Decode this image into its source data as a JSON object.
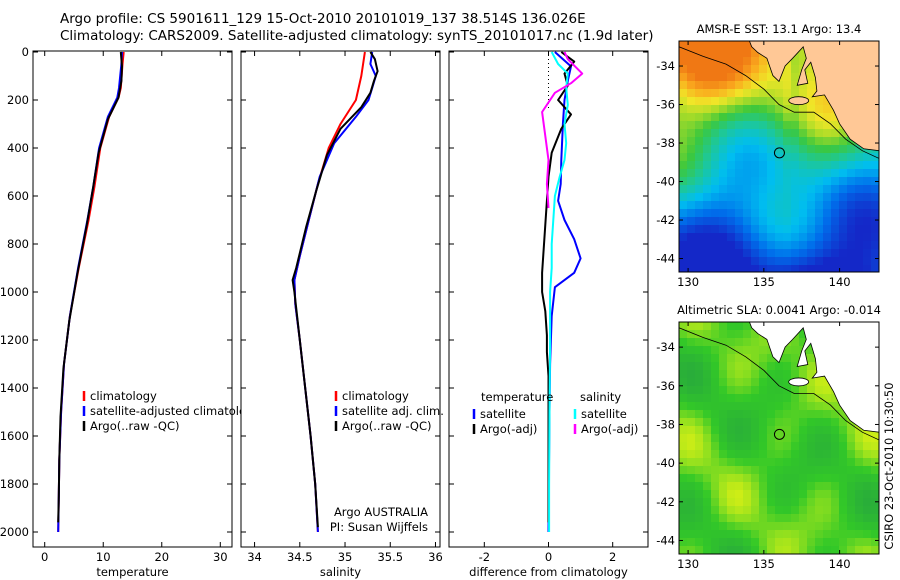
{
  "header": {
    "line1": "Argo profile: CS 5901611_129 15-Oct-2010 20101019_137 38.514S 136.026E",
    "line2": "Climatology: CARS2009. Satellite-adjusted climatology: synTS_20101017.nc (1.9d later)"
  },
  "side_label": "CSIRO 23-Oct-2010 10:30:50",
  "colors": {
    "climatology": "#ff0000",
    "satellite": "#0000ff",
    "argo": "#000000",
    "salinity_satellite": "#00ffff",
    "salinity_argo": "#ff00ff",
    "land": "#ffc896"
  },
  "chart_data": [
    {
      "type": "line",
      "xlabel": "temperature",
      "ylabel": "",
      "xlim": [
        -2,
        32
      ],
      "ylim": [
        2050,
        0
      ],
      "xticks": [
        0,
        10,
        20,
        30
      ],
      "yticks": [
        0,
        200,
        400,
        600,
        800,
        1000,
        1200,
        1400,
        1600,
        1800,
        2000
      ],
      "legend": [
        "climatology",
        "satellite-adjusted climatology",
        "Argo(..raw -QC)"
      ],
      "series": [
        {
          "name": "climatology",
          "color": "climatology",
          "points": [
            [
              13.5,
              0
            ],
            [
              13.3,
              50
            ],
            [
              13.0,
              150
            ],
            [
              12.6,
              190
            ],
            [
              11.0,
              270
            ],
            [
              9.5,
              400
            ],
            [
              8.5,
              560
            ],
            [
              7.5,
              700
            ],
            [
              5.8,
              900
            ],
            [
              4.3,
              1100
            ],
            [
              3.3,
              1300
            ],
            [
              2.8,
              1500
            ],
            [
              2.5,
              1700
            ],
            [
              2.4,
              1850
            ],
            [
              2.3,
              2000
            ]
          ]
        },
        {
          "name": "satellite-adjusted climatology",
          "color": "satellite",
          "points": [
            [
              13.2,
              0
            ],
            [
              13.1,
              50
            ],
            [
              12.7,
              150
            ],
            [
              12.4,
              190
            ],
            [
              10.8,
              270
            ],
            [
              9.3,
              400
            ],
            [
              8.3,
              560
            ],
            [
              7.3,
              700
            ],
            [
              5.7,
              900
            ],
            [
              4.3,
              1100
            ],
            [
              3.3,
              1300
            ],
            [
              2.8,
              1500
            ],
            [
              2.5,
              1700
            ],
            [
              2.4,
              1850
            ],
            [
              2.3,
              2000
            ]
          ]
        },
        {
          "name": "Argo(..raw -QC)",
          "color": "argo",
          "points": [
            [
              13.0,
              0
            ],
            [
              13.2,
              60
            ],
            [
              13.1,
              120
            ],
            [
              12.6,
              190
            ],
            [
              10.8,
              280
            ],
            [
              9.2,
              420
            ],
            [
              8.3,
              560
            ],
            [
              7.2,
              720
            ],
            [
              5.6,
              920
            ],
            [
              4.2,
              1120
            ],
            [
              3.2,
              1320
            ],
            [
              2.7,
              1520
            ],
            [
              2.5,
              1700
            ],
            [
              2.4,
              1850
            ],
            [
              2.3,
              1960
            ]
          ]
        }
      ]
    },
    {
      "type": "line",
      "xlabel": "salinity",
      "xlim": [
        33.85,
        36.05
      ],
      "ylim": [
        2050,
        0
      ],
      "xticks": [
        34,
        34.5,
        35,
        35.5,
        36
      ],
      "legend": [
        "climatology",
        "satellite adj. clim.",
        "Argo(..raw -QC)"
      ],
      "annotation": [
        "Argo AUSTRALIA",
        "PI: Susan Wijffels"
      ],
      "series": [
        {
          "name": "climatology",
          "color": "climatology",
          "points": [
            [
              35.22,
              0
            ],
            [
              35.18,
              100
            ],
            [
              35.12,
              200
            ],
            [
              34.95,
              300
            ],
            [
              34.82,
              400
            ],
            [
              34.7,
              550
            ],
            [
              34.6,
              700
            ],
            [
              34.5,
              850
            ],
            [
              34.44,
              950
            ],
            [
              34.45,
              1050
            ],
            [
              34.5,
              1200
            ],
            [
              34.56,
              1400
            ],
            [
              34.62,
              1600
            ],
            [
              34.67,
              1800
            ],
            [
              34.7,
              2000
            ]
          ]
        },
        {
          "name": "satellite adj. clim.",
          "color": "satellite",
          "points": [
            [
              35.3,
              0
            ],
            [
              35.28,
              50
            ],
            [
              35.34,
              100
            ],
            [
              35.3,
              150
            ],
            [
              35.26,
              200
            ],
            [
              35.12,
              270
            ],
            [
              34.88,
              380
            ],
            [
              34.72,
              520
            ],
            [
              34.6,
              700
            ],
            [
              34.5,
              850
            ],
            [
              34.44,
              950
            ],
            [
              34.45,
              1050
            ],
            [
              34.5,
              1200
            ],
            [
              34.56,
              1400
            ],
            [
              34.62,
              1600
            ],
            [
              34.67,
              1800
            ],
            [
              34.7,
              2000
            ]
          ]
        },
        {
          "name": "Argo(..raw -QC)",
          "color": "argo",
          "points": [
            [
              35.28,
              0
            ],
            [
              35.33,
              30
            ],
            [
              35.36,
              80
            ],
            [
              35.32,
              120
            ],
            [
              35.28,
              170
            ],
            [
              35.18,
              230
            ],
            [
              34.95,
              320
            ],
            [
              34.8,
              430
            ],
            [
              34.68,
              580
            ],
            [
              34.57,
              730
            ],
            [
              34.46,
              900
            ],
            [
              34.42,
              950
            ],
            [
              34.44,
              1000
            ],
            [
              34.5,
              1200
            ],
            [
              34.56,
              1400
            ],
            [
              34.62,
              1600
            ],
            [
              34.67,
              1800
            ],
            [
              34.7,
              1980
            ]
          ]
        }
      ]
    },
    {
      "type": "line",
      "xlabel": "difference from climatology",
      "xlim": [
        -3.1,
        3.1
      ],
      "ylim": [
        2050,
        0
      ],
      "xticks": [
        -2,
        0,
        2
      ],
      "legend_left_title": "temperature",
      "legend_right_title": "salinity",
      "legend_left": [
        "satellite",
        "Argo(-adj)"
      ],
      "legend_right": [
        "satellite",
        "Argo(-adj)"
      ],
      "series": [
        {
          "name": "satellite",
          "group": "temperature",
          "color": "satellite",
          "points": [
            [
              0.2,
              0
            ],
            [
              0.7,
              60
            ],
            [
              0.6,
              120
            ],
            [
              0.5,
              200
            ],
            [
              0.45,
              300
            ],
            [
              0.4,
              450
            ],
            [
              0.38,
              550
            ],
            [
              0.3,
              620
            ],
            [
              0.5,
              700
            ],
            [
              0.8,
              780
            ],
            [
              1.0,
              860
            ],
            [
              0.8,
              920
            ],
            [
              0.2,
              980
            ],
            [
              0.1,
              1100
            ],
            [
              0.05,
              1300
            ],
            [
              0.03,
              1500
            ],
            [
              0.01,
              1800
            ],
            [
              0.0,
              2000
            ]
          ]
        },
        {
          "name": "Argo(-adj)",
          "group": "temperature",
          "color": "argo",
          "points": [
            [
              0.4,
              0
            ],
            [
              0.8,
              40
            ],
            [
              0.5,
              90
            ],
            [
              0.6,
              140
            ],
            [
              0.3,
              200
            ],
            [
              0.7,
              260
            ],
            [
              0.4,
              320
            ],
            [
              0.1,
              420
            ],
            [
              0.0,
              520
            ],
            [
              -0.05,
              620
            ],
            [
              -0.1,
              720
            ],
            [
              -0.15,
              820
            ],
            [
              -0.2,
              920
            ],
            [
              -0.2,
              1000
            ],
            [
              -0.1,
              1080
            ],
            [
              -0.05,
              1180
            ],
            [
              -0.05,
              1250
            ],
            [
              0.0,
              1350
            ],
            [
              0.0,
              1600
            ],
            [
              0.0,
              1960
            ]
          ]
        },
        {
          "name": "satellite",
          "group": "salinity",
          "color": "salinity_satellite",
          "points": [
            [
              0.1,
              0
            ],
            [
              0.3,
              50
            ],
            [
              0.6,
              90
            ],
            [
              0.55,
              150
            ],
            [
              0.6,
              220
            ],
            [
              0.5,
              300
            ],
            [
              0.55,
              380
            ],
            [
              0.5,
              450
            ],
            [
              0.35,
              520
            ],
            [
              0.2,
              600
            ],
            [
              0.15,
              700
            ],
            [
              0.1,
              800
            ],
            [
              0.1,
              900
            ],
            [
              0.05,
              1000
            ],
            [
              0.05,
              1200
            ],
            [
              0.03,
              1500
            ],
            [
              0.02,
              1800
            ],
            [
              0.02,
              2000
            ]
          ]
        },
        {
          "name": "Argo(-adj)",
          "group": "salinity",
          "color": "salinity_argo",
          "points": [
            [
              0.5,
              0
            ],
            [
              0.6,
              30
            ],
            [
              1.05,
              90
            ],
            [
              0.7,
              130
            ],
            [
              0.2,
              170
            ],
            [
              -0.2,
              250
            ],
            [
              -0.1,
              350
            ],
            [
              0.0,
              450
            ],
            [
              -0.05,
              550
            ],
            [
              0.0,
              650
            ]
          ]
        }
      ]
    },
    {
      "type": "heatmap",
      "title": "AMSR-E SST: 13.1 Argo: 13.4",
      "xlim": [
        129.4,
        142.6
      ],
      "ylim": [
        -44.7,
        -32.7
      ],
      "xticks": [
        130,
        135,
        140
      ],
      "yticks": [
        -34,
        -36,
        -38,
        -40,
        -42,
        -44
      ],
      "marker": [
        136.03,
        -38.51
      ]
    },
    {
      "type": "heatmap",
      "title": "Altimetric SLA: 0.0041 Argo: -0.014",
      "xlim": [
        129.4,
        142.6
      ],
      "ylim": [
        -44.7,
        -32.7
      ],
      "xticks": [
        130,
        135,
        140
      ],
      "yticks": [
        -34,
        -36,
        -38,
        -40,
        -42,
        -44
      ],
      "marker": [
        136.03,
        -38.51
      ]
    }
  ]
}
